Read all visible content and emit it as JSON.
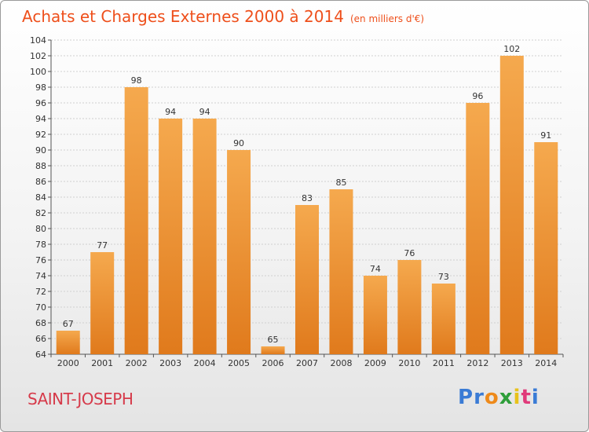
{
  "title": "Achats et Charges Externes 2000 à 2014",
  "subtitle": "(en milliers d'€)",
  "place": "SAINT-JOSEPH",
  "logo_letters": [
    "P",
    "r",
    "o",
    "x",
    "i",
    "t",
    "i"
  ],
  "logo_colors": [
    "#3a7bd5",
    "#3a7bd5",
    "#ee8a1b",
    "#2e9e3a",
    "#e8c21a",
    "#e03a7a",
    "#3a7bd5"
  ],
  "colors": {
    "bar_top": "#f5a94e",
    "bar_bottom": "#e07a1c",
    "title": "#ee4f1b",
    "place": "#d63a4a"
  },
  "chart_data": {
    "type": "bar",
    "categories": [
      "2000",
      "2001",
      "2002",
      "2003",
      "2004",
      "2005",
      "2006",
      "2007",
      "2008",
      "2009",
      "2010",
      "2011",
      "2012",
      "2013",
      "2014"
    ],
    "values": [
      67,
      77,
      98,
      94,
      94,
      90,
      65,
      83,
      85,
      74,
      76,
      73,
      96,
      102,
      91
    ],
    "ylim": [
      64,
      104
    ],
    "yticks": [
      64,
      66,
      68,
      70,
      72,
      74,
      76,
      78,
      80,
      82,
      84,
      86,
      88,
      90,
      92,
      94,
      96,
      98,
      100,
      102,
      104
    ],
    "grid": true,
    "xlabel": "",
    "ylabel": ""
  }
}
